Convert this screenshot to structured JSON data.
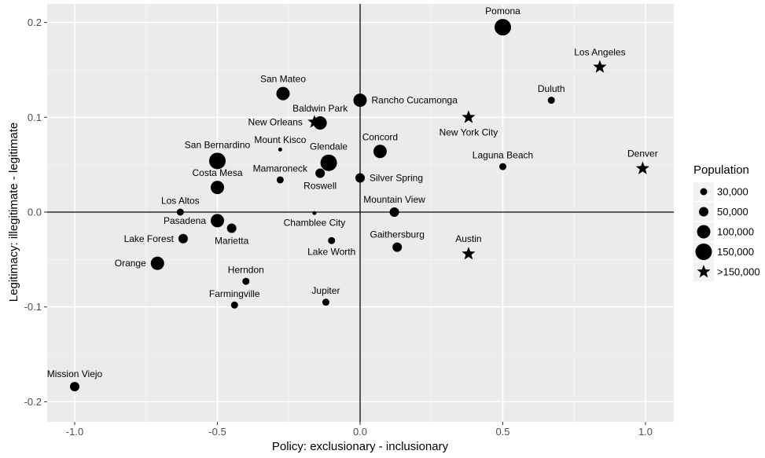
{
  "chart_data": {
    "type": "scatter",
    "xlabel": "Policy: exclusionary - inclusionary",
    "ylabel": "Legitimacy: illegitimate - legitimate",
    "xlim": [
      -1.1,
      1.1
    ],
    "ylim": [
      -0.22,
      0.22
    ],
    "x_ticks": [
      -1.0,
      -0.5,
      0.0,
      0.5,
      1.0
    ],
    "x_tick_labels": [
      "-1.0",
      "-0.5",
      "0.0",
      "0.5",
      "1.0"
    ],
    "y_ticks": [
      -0.2,
      -0.1,
      0.0,
      0.1,
      0.2
    ],
    "y_tick_labels": [
      "-0.2",
      "-0.1",
      "0.0",
      "0.1",
      "0.2"
    ],
    "grid": true,
    "reference_lines": {
      "x": 0,
      "y": 0
    },
    "legend": {
      "title": "Population",
      "position": "right",
      "entries": [
        {
          "label": "30,000",
          "size": "30000",
          "shape": "circle"
        },
        {
          "label": "50,000",
          "size": "50000",
          "shape": "circle"
        },
        {
          "label": "100,000",
          "size": "100000",
          "shape": "circle"
        },
        {
          "label": "150,000",
          "size": "150000",
          "shape": "circle"
        },
        {
          "label": ">150,000",
          "size": "large",
          "shape": "star"
        }
      ]
    },
    "points": [
      {
        "name": "Pomona",
        "x": 0.5,
        "y": 0.195,
        "size": "150000",
        "shape": "circle",
        "label_pos": "above"
      },
      {
        "name": "Los Angeles",
        "x": 0.84,
        "y": 0.153,
        "size": "large",
        "shape": "star",
        "label_pos": "above"
      },
      {
        "name": "Duluth",
        "x": 0.67,
        "y": 0.118,
        "size": "30000",
        "shape": "circle",
        "label_pos": "above"
      },
      {
        "name": "San Mateo",
        "x": -0.27,
        "y": 0.125,
        "size": "100000",
        "shape": "circle",
        "label_pos": "above"
      },
      {
        "name": "Rancho Cucamonga",
        "x": 0.0,
        "y": 0.118,
        "size": "100000",
        "shape": "circle",
        "label_pos": "right"
      },
      {
        "name": "Baldwin Park",
        "x": -0.14,
        "y": 0.094,
        "size": "100000",
        "shape": "circle",
        "label_pos": "above"
      },
      {
        "name": "New Orleans",
        "x": -0.16,
        "y": 0.095,
        "size": "large",
        "shape": "star",
        "label_pos": "left"
      },
      {
        "name": "New York City",
        "x": 0.38,
        "y": 0.1,
        "size": "large",
        "shape": "star",
        "label_pos": "below"
      },
      {
        "name": "Mount Kisco",
        "x": -0.28,
        "y": 0.066,
        "size": "tiny",
        "shape": "circle",
        "label_pos": "above"
      },
      {
        "name": "Concord",
        "x": 0.07,
        "y": 0.064,
        "size": "100000",
        "shape": "circle",
        "label_pos": "above"
      },
      {
        "name": "Glendale",
        "x": -0.11,
        "y": 0.052,
        "size": "150000",
        "shape": "circle",
        "label_pos": "above"
      },
      {
        "name": "San Bernardino",
        "x": -0.5,
        "y": 0.054,
        "size": "150000",
        "shape": "circle",
        "label_pos": "above"
      },
      {
        "name": "Laguna Beach",
        "x": 0.5,
        "y": 0.048,
        "size": "30000",
        "shape": "circle",
        "label_pos": "above"
      },
      {
        "name": "Denver",
        "x": 0.99,
        "y": 0.046,
        "size": "large",
        "shape": "star",
        "label_pos": "above"
      },
      {
        "name": "Mamaroneck",
        "x": -0.28,
        "y": 0.034,
        "size": "30000",
        "shape": "circle",
        "label_pos": "above"
      },
      {
        "name": "Roswell",
        "x": -0.14,
        "y": 0.041,
        "size": "50000",
        "shape": "circle",
        "label_pos": "below"
      },
      {
        "name": "Silver Spring",
        "x": 0.0,
        "y": 0.036,
        "size": "50000",
        "shape": "circle",
        "label_pos": "right"
      },
      {
        "name": "Costa Mesa",
        "x": -0.5,
        "y": 0.026,
        "size": "100000",
        "shape": "circle",
        "label_pos": "above"
      },
      {
        "name": "Los Altos",
        "x": -0.63,
        "y": 0.0,
        "size": "30000",
        "shape": "circle",
        "label_pos": "above"
      },
      {
        "name": "Mountain View",
        "x": 0.12,
        "y": 0.0,
        "size": "50000",
        "shape": "circle",
        "label_pos": "above"
      },
      {
        "name": "Chamblee City",
        "x": -0.16,
        "y": -0.001,
        "size": "tiny",
        "shape": "circle",
        "label_pos": "below"
      },
      {
        "name": "Pasadena",
        "x": -0.5,
        "y": -0.009,
        "size": "100000",
        "shape": "circle",
        "label_pos": "left"
      },
      {
        "name": "Marietta",
        "x": -0.45,
        "y": -0.017,
        "size": "50000",
        "shape": "circle",
        "label_pos": "below"
      },
      {
        "name": "Lake Forest",
        "x": -0.62,
        "y": -0.028,
        "size": "50000",
        "shape": "circle",
        "label_pos": "left"
      },
      {
        "name": "Lake Worth",
        "x": -0.1,
        "y": -0.03,
        "size": "30000",
        "shape": "circle",
        "label_pos": "below"
      },
      {
        "name": "Gaithersburg",
        "x": 0.13,
        "y": -0.037,
        "size": "50000",
        "shape": "circle",
        "label_pos": "above"
      },
      {
        "name": "Austin",
        "x": 0.38,
        "y": -0.044,
        "size": "large",
        "shape": "star",
        "label_pos": "above"
      },
      {
        "name": "Orange",
        "x": -0.71,
        "y": -0.054,
        "size": "100000",
        "shape": "circle",
        "label_pos": "left"
      },
      {
        "name": "Herndon",
        "x": -0.4,
        "y": -0.073,
        "size": "30000",
        "shape": "circle",
        "label_pos": "above"
      },
      {
        "name": "Jupiter",
        "x": -0.12,
        "y": -0.095,
        "size": "30000",
        "shape": "circle",
        "label_pos": "above"
      },
      {
        "name": "Farmingville",
        "x": -0.44,
        "y": -0.098,
        "size": "30000",
        "shape": "circle",
        "label_pos": "above"
      },
      {
        "name": "Mission Viejo",
        "x": -1.0,
        "y": -0.184,
        "size": "50000",
        "shape": "circle",
        "label_pos": "above"
      }
    ]
  }
}
